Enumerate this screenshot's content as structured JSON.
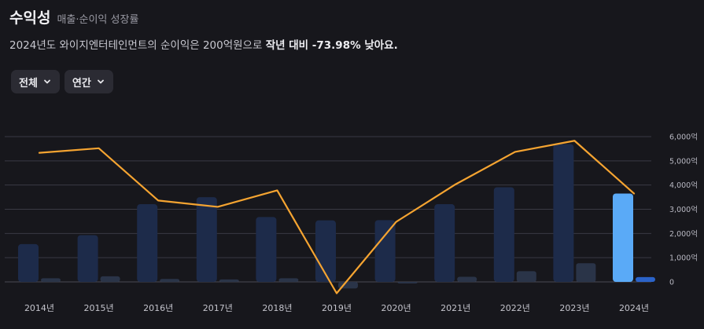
{
  "header": {
    "title": "수익성",
    "subtitle": "매출·순이익 성장률"
  },
  "description": {
    "prefix": "2024년도 와이지엔터테인먼트의 순이익은 200억원으로 ",
    "emphasis": "작년 대비 -73.98% 낮아요."
  },
  "filters": {
    "scope_label": "전체",
    "period_label": "연간"
  },
  "colors": {
    "revenue_bar": "#1d2b4a",
    "revenue_bar_highlight": "#5aaaf7",
    "profit_bar": "#2a3448",
    "profit_bar_highlight": "#2b63c9",
    "line": "#f5a431",
    "grid": "#3a3a44"
  },
  "chart_data": {
    "type": "bar+line",
    "categories": [
      "2014년",
      "2015년",
      "2016년",
      "2017년",
      "2018년",
      "2019년",
      "2020년",
      "2021년",
      "2022년",
      "2023년",
      "2024년"
    ],
    "series": [
      {
        "name": "매출",
        "type": "bar",
        "values": [
          1560,
          1930,
          3210,
          3500,
          2680,
          2540,
          2550,
          3210,
          3910,
          5690,
          3650
        ]
      },
      {
        "name": "순이익",
        "type": "bar",
        "values": [
          150,
          230,
          120,
          100,
          150,
          -270,
          -10,
          210,
          440,
          770,
          200
        ]
      },
      {
        "name": "성장률",
        "type": "line",
        "values": [
          5330,
          5520,
          3360,
          3100,
          3780,
          -470,
          2480,
          4030,
          5370,
          5830,
          3650
        ]
      }
    ],
    "y_ticks": [
      "0",
      "1,000억",
      "2,000억",
      "3,000억",
      "4,000억",
      "5,000억",
      "6,000억"
    ],
    "ylim": [
      0,
      6000
    ],
    "highlight_index": 10
  }
}
